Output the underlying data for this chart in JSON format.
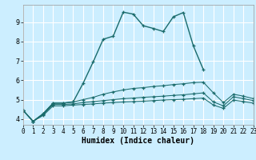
{
  "xlabel": "Humidex (Indice chaleur)",
  "background_color": "#cceeff",
  "grid_color": "#ffffff",
  "line_color": "#1a6b6b",
  "xlim": [
    0,
    23
  ],
  "ylim": [
    3.7,
    9.9
  ],
  "xticks": [
    0,
    1,
    2,
    3,
    4,
    5,
    6,
    7,
    8,
    9,
    10,
    11,
    12,
    13,
    14,
    15,
    16,
    17,
    18,
    19,
    20,
    21,
    22,
    23
  ],
  "yticks": [
    4,
    5,
    6,
    7,
    8,
    9
  ],
  "lines": [
    {
      "x": [
        0,
        1,
        2,
        3,
        4,
        5,
        6,
        7,
        8,
        9,
        10,
        11,
        12,
        13,
        14,
        15,
        16,
        17,
        18
      ],
      "y": [
        4.45,
        3.88,
        4.27,
        4.82,
        4.82,
        4.88,
        5.85,
        6.95,
        8.12,
        8.28,
        9.52,
        9.42,
        8.82,
        8.68,
        8.52,
        9.28,
        9.5,
        7.78,
        6.55
      ]
    },
    {
      "x": [
        0,
        1,
        2,
        3,
        4,
        5,
        6,
        7,
        8,
        9,
        10,
        11,
        12,
        13,
        14,
        15,
        16,
        17,
        18,
        19,
        20,
        21,
        22,
        23
      ],
      "y": [
        4.45,
        3.88,
        4.27,
        4.82,
        4.82,
        4.88,
        5.0,
        5.12,
        5.28,
        5.4,
        5.5,
        5.58,
        5.62,
        5.68,
        5.72,
        5.78,
        5.82,
        5.88,
        5.9,
        5.35,
        4.85,
        5.28,
        5.18,
        5.05
      ]
    },
    {
      "x": [
        0,
        1,
        2,
        3,
        4,
        5,
        6,
        7,
        8,
        9,
        10,
        11,
        12,
        13,
        14,
        15,
        16,
        17,
        18,
        19,
        20,
        21,
        22,
        23
      ],
      "y": [
        4.45,
        3.88,
        4.22,
        4.75,
        4.75,
        4.78,
        4.85,
        4.9,
        4.95,
        5.0,
        5.05,
        5.08,
        5.12,
        5.15,
        5.18,
        5.22,
        5.25,
        5.3,
        5.35,
        4.88,
        4.68,
        5.15,
        5.05,
        4.95
      ]
    },
    {
      "x": [
        0,
        1,
        2,
        3,
        4,
        5,
        6,
        7,
        8,
        9,
        10,
        11,
        12,
        13,
        14,
        15,
        16,
        17,
        18,
        19,
        20,
        21,
        22,
        23
      ],
      "y": [
        4.45,
        3.88,
        4.18,
        4.68,
        4.68,
        4.72,
        4.75,
        4.78,
        4.82,
        4.85,
        4.88,
        4.9,
        4.92,
        4.95,
        4.98,
        5.0,
        5.02,
        5.05,
        5.08,
        4.72,
        4.55,
        4.98,
        4.9,
        4.82
      ]
    }
  ]
}
